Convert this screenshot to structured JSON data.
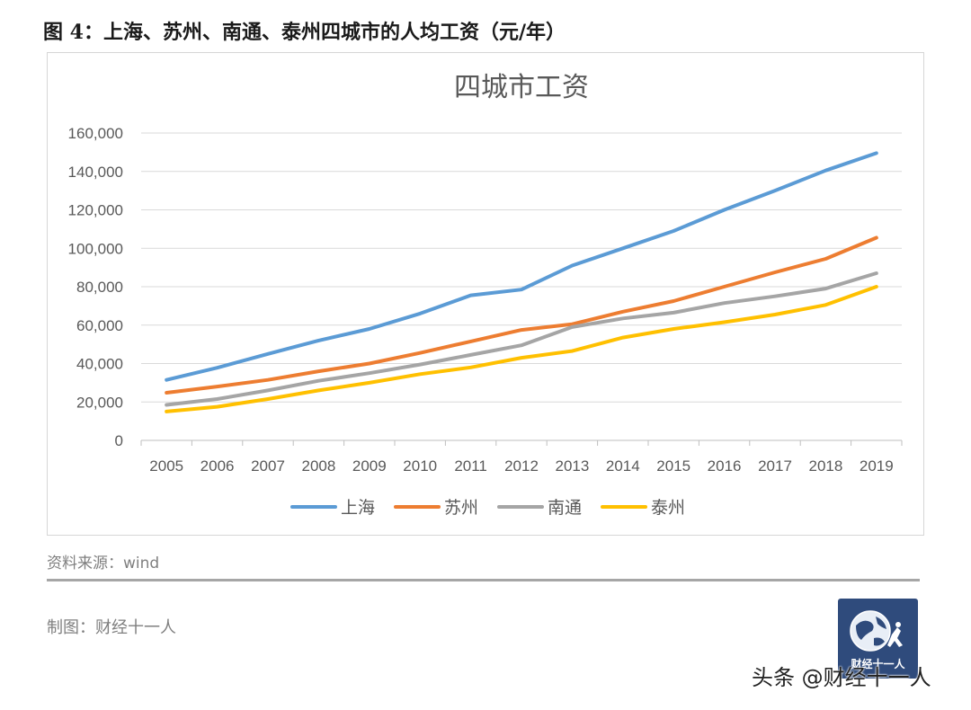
{
  "header": {
    "title": "图 4：上海、苏州、南通、泰州四城市的人均工资（元/年）"
  },
  "chart_data": {
    "type": "line",
    "title": "四城市工资",
    "xlabel": "",
    "ylabel": "",
    "x": [
      "2005",
      "2006",
      "2007",
      "2008",
      "2009",
      "2010",
      "2011",
      "2012",
      "2013",
      "2014",
      "2015",
      "2016",
      "2017",
      "2018",
      "2019"
    ],
    "ylim": [
      0,
      160000
    ],
    "yticks": [
      0,
      20000,
      40000,
      60000,
      80000,
      100000,
      120000,
      140000,
      160000
    ],
    "ytick_labels": [
      "0",
      "20,000",
      "40,000",
      "60,000",
      "80,000",
      "100,000",
      "120,000",
      "140,000",
      "160,000"
    ],
    "grid": true,
    "legend_position": "bottom",
    "series": [
      {
        "name": "上海",
        "color": "#5b9bd5",
        "values": [
          31500,
          37800,
          45000,
          52000,
          58000,
          66000,
          75500,
          78500,
          91000,
          100000,
          109000,
          120000,
          130000,
          140500,
          149500
        ]
      },
      {
        "name": "苏州",
        "color": "#ed7d31",
        "values": [
          24800,
          28000,
          31500,
          36000,
          40000,
          45500,
          51500,
          57500,
          60500,
          67000,
          72500,
          80000,
          87500,
          94500,
          105500
        ]
      },
      {
        "name": "南通",
        "color": "#a5a5a5",
        "values": [
          18500,
          21500,
          26000,
          31000,
          35000,
          39500,
          44500,
          49500,
          59000,
          63500,
          66500,
          71500,
          75000,
          79000,
          87000
        ]
      },
      {
        "name": "泰州",
        "color": "#ffc000",
        "values": [
          15000,
          17500,
          21500,
          26000,
          30000,
          34500,
          38000,
          43000,
          46500,
          53500,
          58000,
          61500,
          65500,
          70500,
          80000
        ]
      }
    ]
  },
  "footer": {
    "source": "资料来源：wind",
    "maker": "制图：财经十一人",
    "logo_text": "财经十一人",
    "watermark": "头条 @财经十一人"
  }
}
